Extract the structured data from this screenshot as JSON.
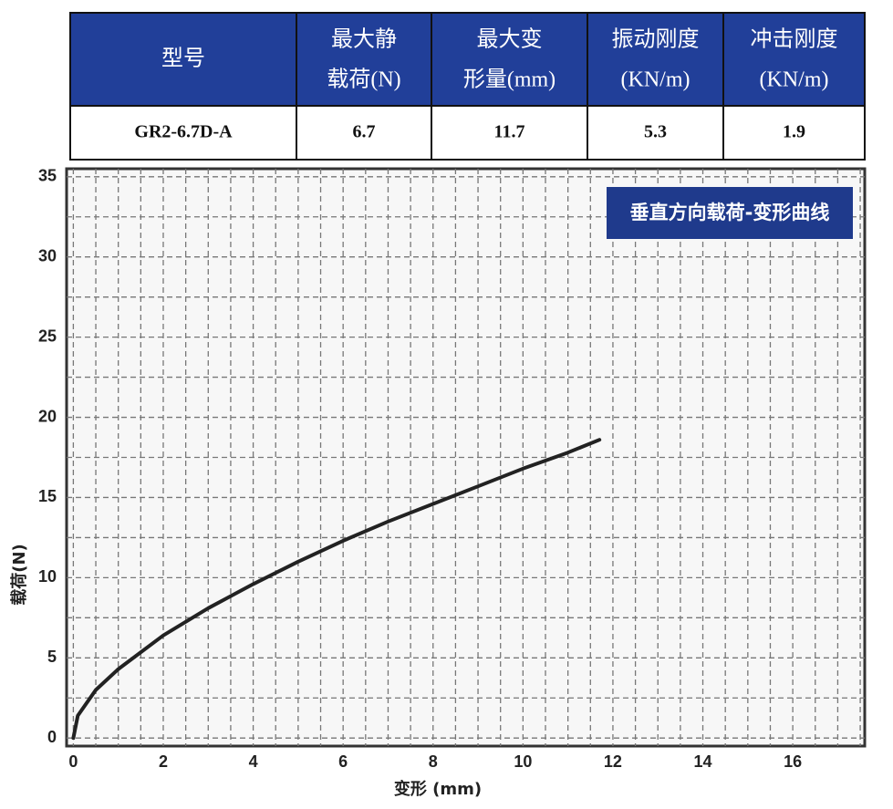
{
  "table": {
    "header": [
      [
        "型号"
      ],
      [
        "最大静",
        "载荷(N)"
      ],
      [
        "最大变",
        "形量(mm)"
      ],
      [
        "振动刚度",
        "(KN/m)"
      ],
      [
        "冲击刚度",
        "(KN/m)"
      ]
    ],
    "rows": [
      [
        "GR2-6.7D-A",
        "6.7",
        "11.7",
        "5.3",
        "1.9"
      ]
    ]
  },
  "chart_data": {
    "type": "line",
    "title": "垂直方向载荷-变形曲线",
    "x_label": "变形 (mm)",
    "y_label": "载荷(N)",
    "x": [
      0,
      0.1,
      0.5,
      1,
      2,
      3,
      4,
      5,
      6,
      7,
      8,
      9,
      10,
      11,
      11.7
    ],
    "series": [
      {
        "color": "#222222",
        "values": [
          0,
          1.4,
          3.0,
          4.3,
          6.4,
          8.1,
          9.6,
          11.0,
          12.3,
          13.5,
          14.6,
          15.7,
          16.8,
          17.8,
          18.6
        ]
      }
    ],
    "xlim": [
      -0.15,
      17.6
    ],
    "ylim": [
      -0.5,
      35.5
    ],
    "xticks": [
      0,
      2,
      4,
      6,
      8,
      10,
      12,
      14,
      16
    ],
    "yticks": [
      0,
      5,
      10,
      15,
      20,
      25,
      30,
      35
    ],
    "grid": true
  }
}
